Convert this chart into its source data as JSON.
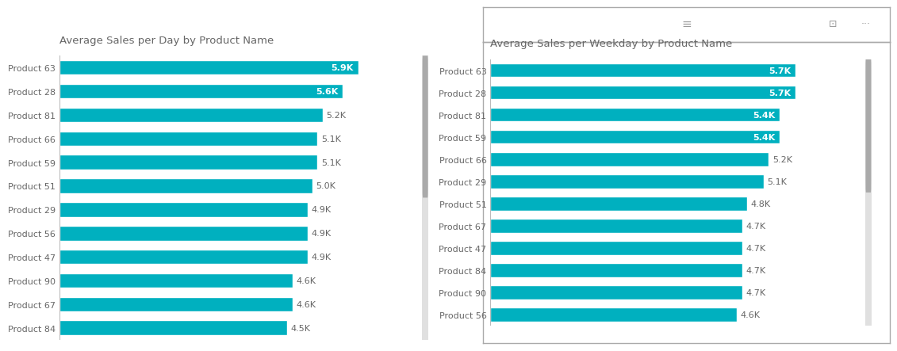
{
  "chart1": {
    "title": "Average Sales per Day by Product Name",
    "categories": [
      "Product 63",
      "Product 28",
      "Product 81",
      "Product 66",
      "Product 59",
      "Product 51",
      "Product 29",
      "Product 56",
      "Product 47",
      "Product 90",
      "Product 67",
      "Product 84"
    ],
    "values": [
      5900,
      5600,
      5200,
      5100,
      5100,
      5000,
      4900,
      4900,
      4900,
      4600,
      4600,
      4500
    ],
    "labels": [
      "5.9K",
      "5.6K",
      "5.2K",
      "5.1K",
      "5.1K",
      "5.0K",
      "4.9K",
      "4.9K",
      "4.9K",
      "4.6K",
      "4.6K",
      "4.5K"
    ],
    "label_inside": [
      true,
      true,
      false,
      false,
      false,
      false,
      false,
      false,
      false,
      false,
      false,
      false
    ]
  },
  "chart2": {
    "title": "Average Sales per Weekday by Product Name",
    "categories": [
      "Product 63",
      "Product 28",
      "Product 81",
      "Product 59",
      "Product 66",
      "Product 29",
      "Product 51",
      "Product 67",
      "Product 47",
      "Product 84",
      "Product 90",
      "Product 56"
    ],
    "values": [
      5700,
      5700,
      5400,
      5400,
      5200,
      5100,
      4800,
      4700,
      4700,
      4700,
      4700,
      4600
    ],
    "labels": [
      "5.7K",
      "5.7K",
      "5.4K",
      "5.4K",
      "5.2K",
      "5.1K",
      "4.8K",
      "4.7K",
      "4.7K",
      "4.7K",
      "4.7K",
      "4.6K"
    ],
    "label_inside": [
      true,
      true,
      true,
      true,
      false,
      false,
      false,
      false,
      false,
      false,
      false,
      false
    ]
  },
  "bar_color": "#00B0BF",
  "bg_color": "#FFFFFF",
  "bg_color_light": "#F3F3F3",
  "title_color": "#666666",
  "label_color_outside": "#666666",
  "label_color_inside": "#FFFFFF",
  "title_fontsize": 9.5,
  "label_fontsize": 8,
  "ytick_fontsize": 8,
  "scrollbar_bg": "#E0E0E0",
  "scrollbar_fg": "#AAAAAA",
  "border_color": "#AAAAAA",
  "toolbar_icon_color": "#999999"
}
